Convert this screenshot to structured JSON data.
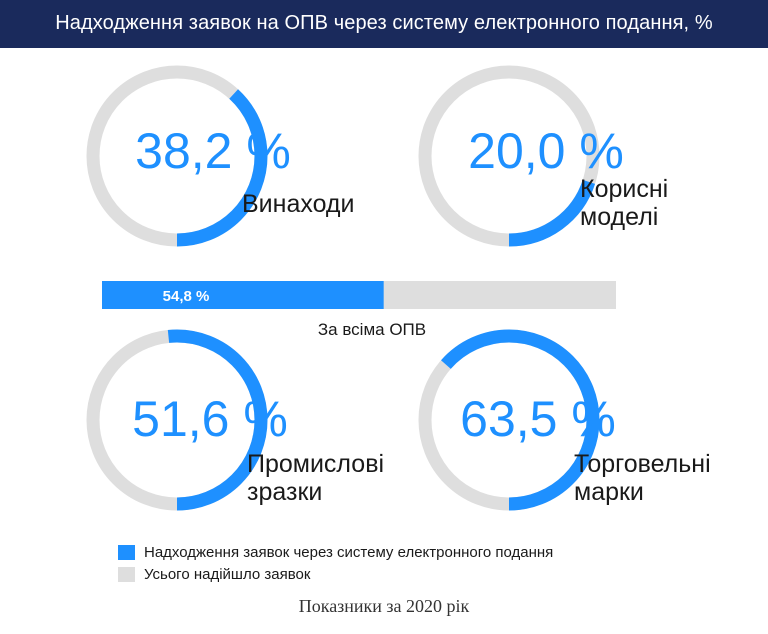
{
  "title": "Надходження заявок на ОПВ через систему електронного подання, %",
  "colors": {
    "header_bg": "#1a2a5c",
    "electronic": "#1e90ff",
    "total": "#dedede",
    "text": "#1a1a1a"
  },
  "chart_data": {
    "type": "donut",
    "unit": "%",
    "items": [
      {
        "name": "Винаходи",
        "label_lines": [
          "Винаходи"
        ],
        "value": 38.2,
        "value_label": "38,2 %"
      },
      {
        "name": "Корисні моделі",
        "label_lines": [
          "Корисні",
          "моделі"
        ],
        "value": 20.0,
        "value_label": "20,0 %"
      },
      {
        "name": "Промислові зразки",
        "label_lines": [
          "Промислові",
          "зразки"
        ],
        "value": 51.6,
        "value_label": "51,6 %"
      },
      {
        "name": "Торговельні марки",
        "label_lines": [
          "Торговельні",
          "марки"
        ],
        "value": 63.5,
        "value_label": "63,5 %"
      }
    ],
    "overall": {
      "label": "За всіма ОПВ",
      "value": 54.8,
      "value_label": "54,8 %"
    },
    "legend": [
      {
        "label": "Надходження заявок через систему електронного подання",
        "color": "#1e90ff"
      },
      {
        "label": "Усього надійшло заявок",
        "color": "#dedede"
      }
    ]
  },
  "footnote": "Показники за 2020 рік"
}
